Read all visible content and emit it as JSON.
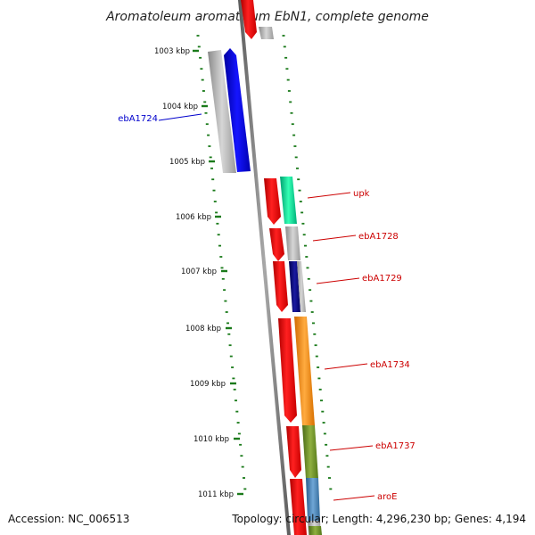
{
  "title": "Aromatoleum aromaticum EbN1, complete genome",
  "footer": {
    "accession": "Accession: NC_006513",
    "summary": "Topology: circular; Length: 4,296,230 bp; Genes: 4,194"
  },
  "scale": {
    "unit": "kbp",
    "major_ticks": [
      "1003 kbp",
      "1004 kbp",
      "1005 kbp",
      "1006 kbp",
      "1007 kbp",
      "1008 kbp",
      "1009 kbp",
      "1010 kbp",
      "1011 kbp"
    ]
  },
  "gene_labels": [
    {
      "text": "ebA1724",
      "color": "#0000cc"
    },
    {
      "text": "upk",
      "color": "#cc0000"
    },
    {
      "text": "ebA1728",
      "color": "#cc0000"
    },
    {
      "text": "ebA1729",
      "color": "#cc0000"
    },
    {
      "text": "ebA1734",
      "color": "#cc0000"
    },
    {
      "text": "ebA1737",
      "color": "#cc0000"
    },
    {
      "text": "aroE",
      "color": "#cc0000"
    }
  ],
  "colors": {
    "backbone": "#7a7a7a",
    "tick": "#1a7a1a",
    "cds": "#ee0000",
    "gene_blue": "#0000ee",
    "gene_navy": "#000080",
    "gene_teal": "#00e69a",
    "gene_orange": "#ff8c00",
    "gene_olive": "#6b8e23",
    "gene_steel": "#4682b4",
    "gene_gray": "#b8b8b8"
  }
}
